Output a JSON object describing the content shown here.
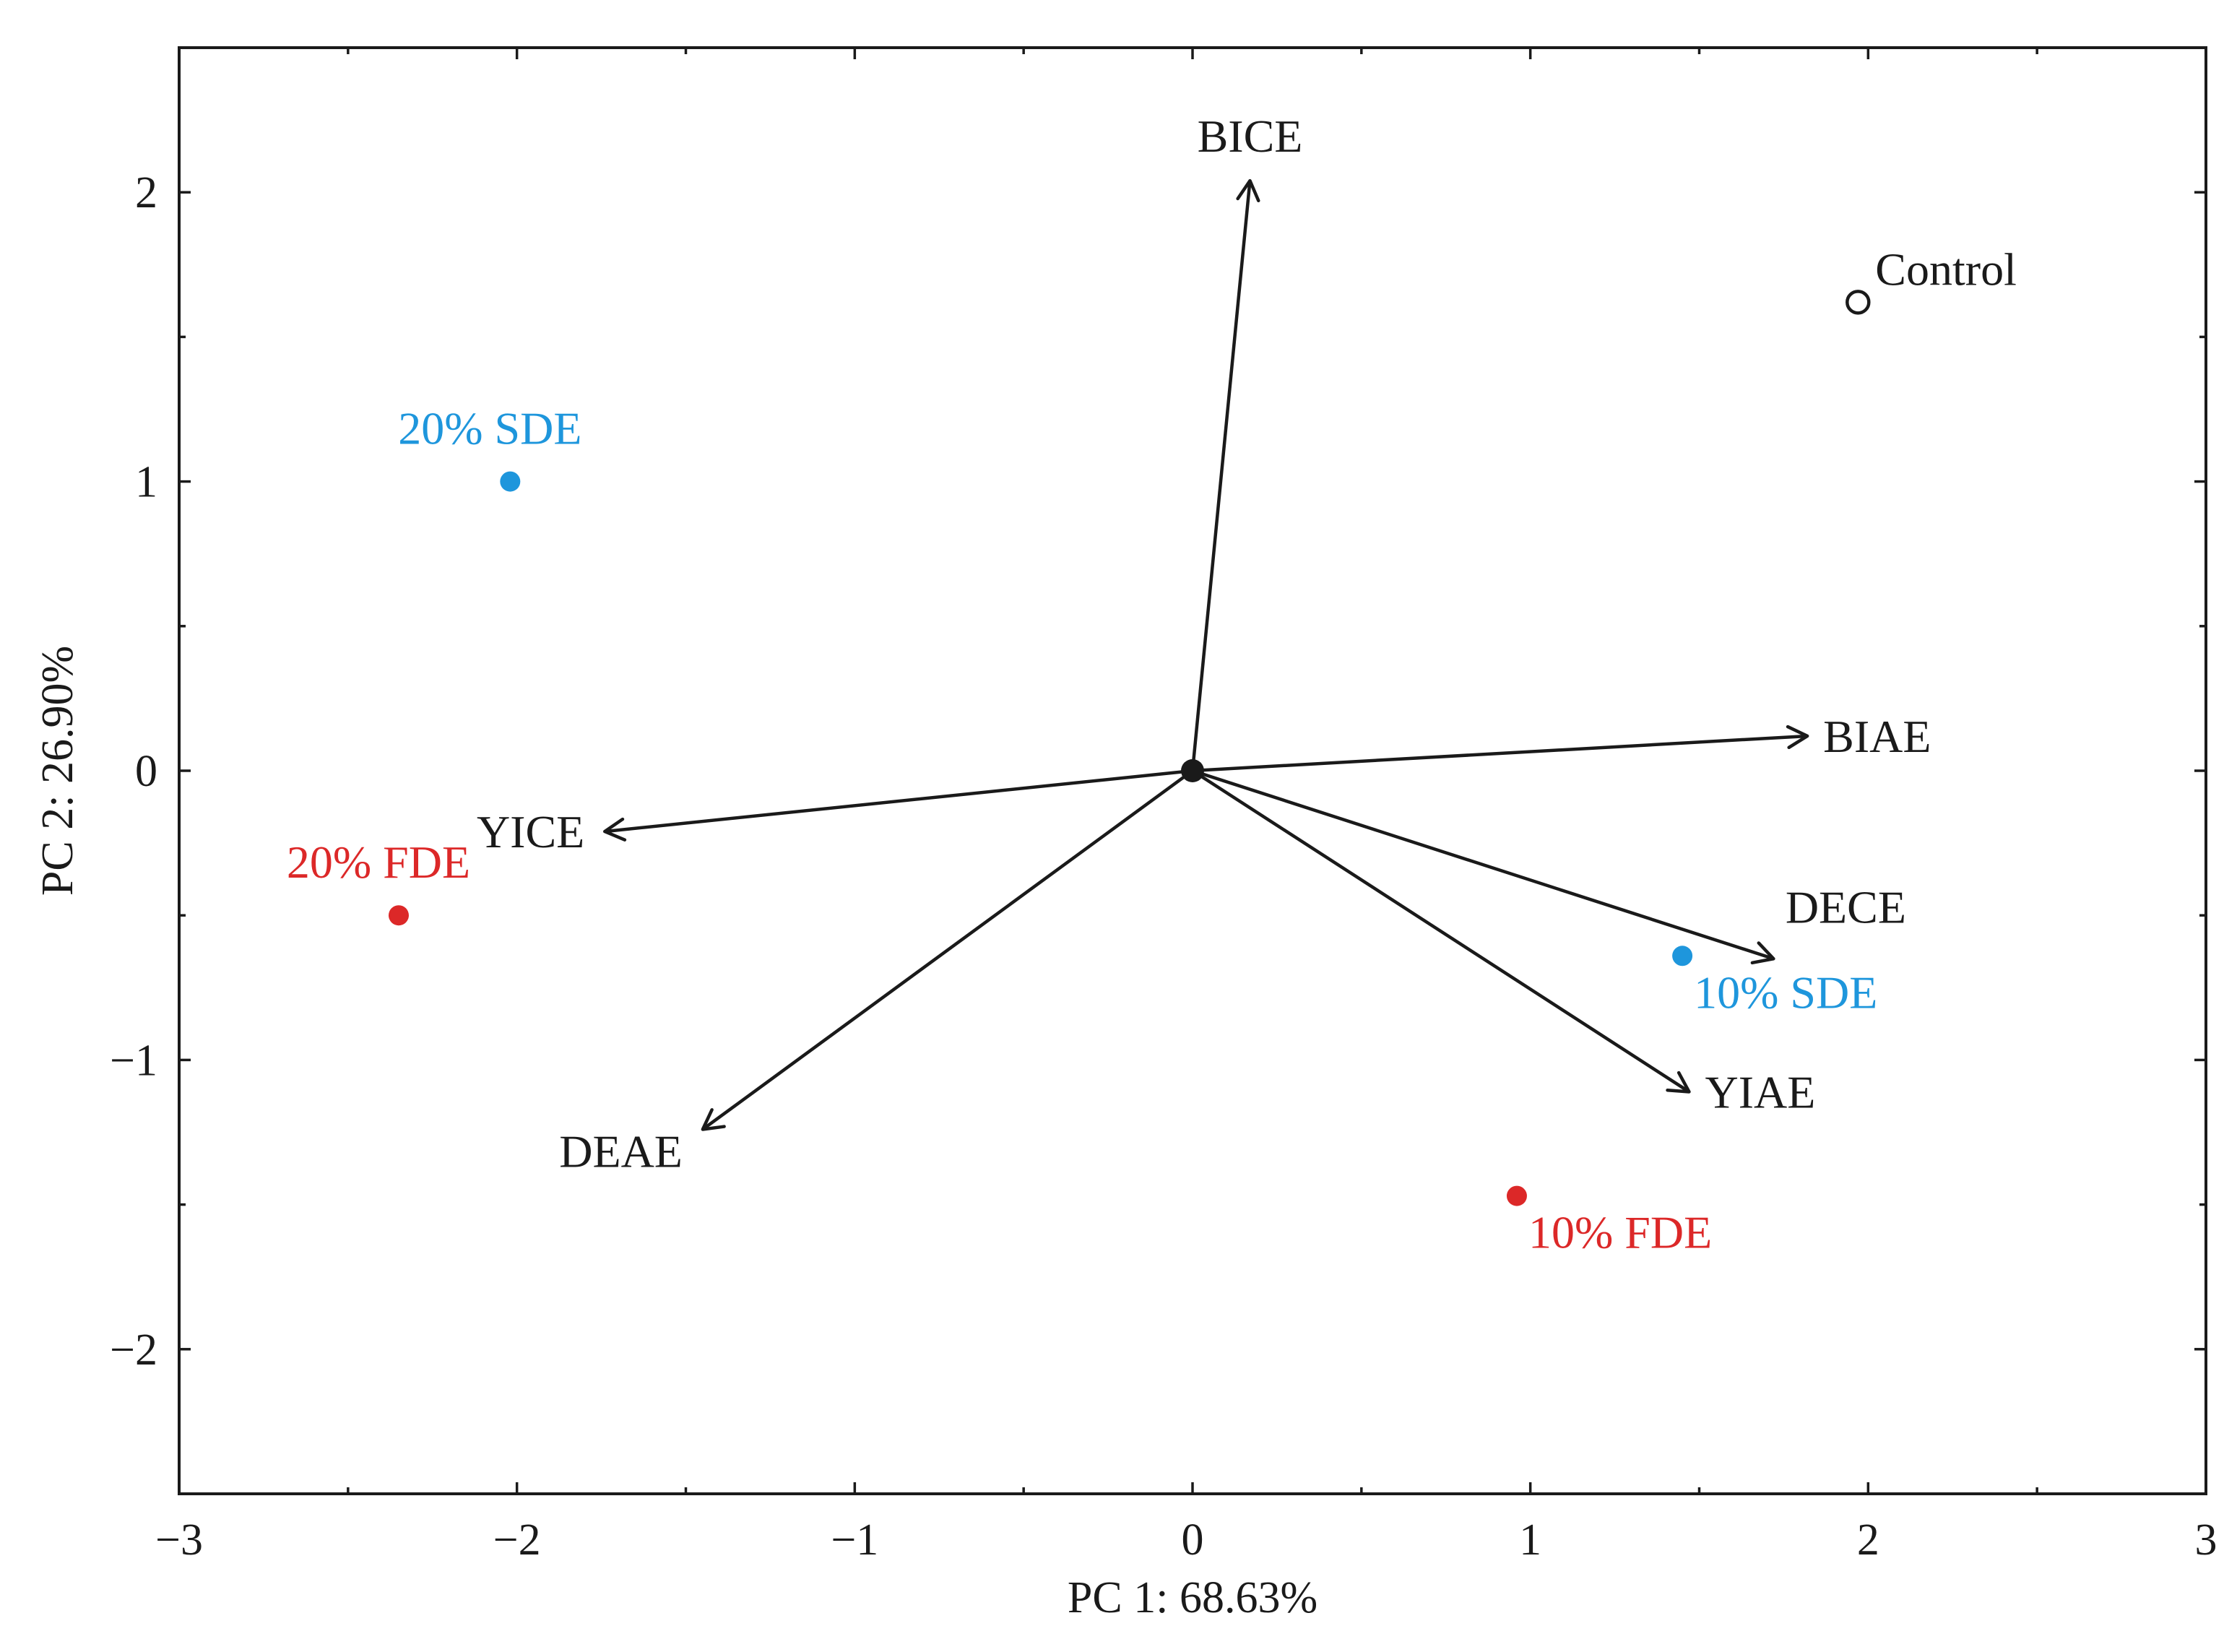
{
  "chart_data": {
    "type": "scatter",
    "subtype": "pca-biplot",
    "title": "",
    "xlabel": "PC 1: 68.63%",
    "ylabel": "PC 2: 26.90%",
    "xlim": [
      -3,
      3
    ],
    "ylim": [
      -2.5,
      2.5
    ],
    "xticks": [
      -3,
      -2,
      -1,
      0,
      1,
      2,
      3
    ],
    "xtick_labels": [
      "−3",
      "−2",
      "−1",
      "0",
      "1",
      "2",
      "3"
    ],
    "yticks": [
      -2,
      -1,
      0,
      1,
      2
    ],
    "ytick_labels": [
      "−2",
      "−1",
      "0",
      "1",
      "2"
    ],
    "grid": false,
    "colors": {
      "sde": "#1e96dc",
      "fde": "#dc2828",
      "control": "#1a1a1a",
      "vector": "#1a1a1a"
    },
    "points": [
      {
        "name": "Control",
        "x": 1.97,
        "y": 1.62,
        "marker": "open-circle",
        "color_key": "control",
        "label_anchor": "right-up"
      },
      {
        "name": "20% SDE",
        "x": -2.02,
        "y": 1.0,
        "marker": "filled-circle",
        "color_key": "sde",
        "label_anchor": "above-left"
      },
      {
        "name": "20% FDE",
        "x": -2.35,
        "y": -0.5,
        "marker": "filled-circle",
        "color_key": "fde",
        "label_anchor": "above-left"
      },
      {
        "name": "10% SDE",
        "x": 1.45,
        "y": -0.64,
        "marker": "filled-circle",
        "color_key": "sde",
        "label_anchor": "below-right"
      },
      {
        "name": "10% FDE",
        "x": 0.96,
        "y": -1.47,
        "marker": "filled-circle",
        "color_key": "fde",
        "label_anchor": "below-right"
      }
    ],
    "vectors": [
      {
        "name": "BICE",
        "x": 0.17,
        "y": 2.04,
        "label_anchor": "above"
      },
      {
        "name": "BIAE",
        "x": 1.82,
        "y": 0.12,
        "label_anchor": "right"
      },
      {
        "name": "YICE",
        "x": -1.74,
        "y": -0.21,
        "label_anchor": "left"
      },
      {
        "name": "DECE",
        "x": 1.72,
        "y": -0.65,
        "label_anchor": "above-right"
      },
      {
        "name": "YIAE",
        "x": 1.47,
        "y": -1.11,
        "label_anchor": "right"
      },
      {
        "name": "DEAE",
        "x": -1.45,
        "y": -1.24,
        "label_anchor": "below-left"
      }
    ],
    "origin_marker": {
      "x": 0,
      "y": 0
    }
  }
}
